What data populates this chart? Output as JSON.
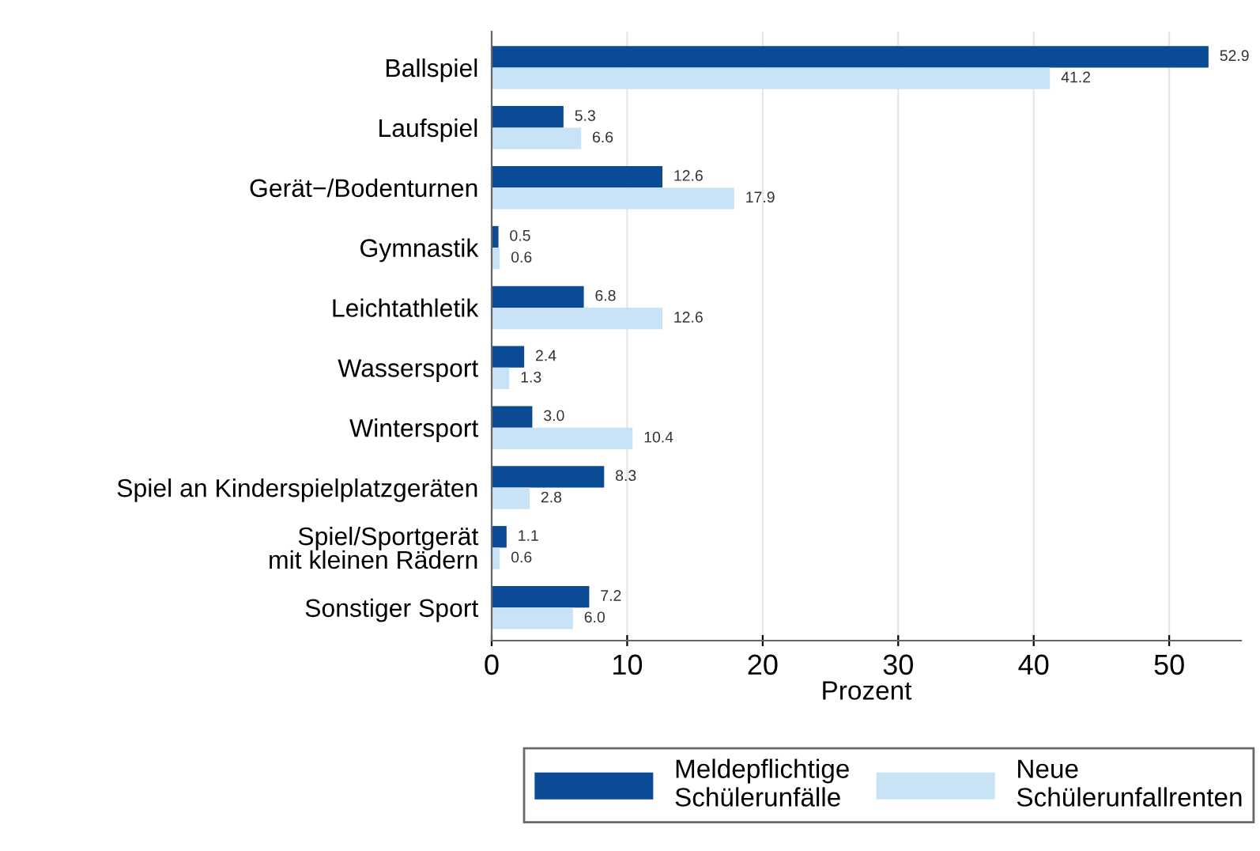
{
  "chart_data": {
    "type": "bar",
    "orientation": "horizontal",
    "xlabel": "Prozent",
    "categories": [
      "Ballspiel",
      "Laufspiel",
      "Gerät−/Bodenturnen",
      "Gymnastik",
      "Leichtathletik",
      "Wassersport",
      "Wintersport",
      "Spiel an Kinderspielplatzgeräten",
      "Spiel/Sportgerät\nmit kleinen Rädern",
      "Sonstiger Sport"
    ],
    "series": [
      {
        "name": "Meldepflichtige\nSchülerunfälle",
        "color": "#0b4a94",
        "values": [
          52.9,
          5.3,
          12.6,
          0.5,
          6.8,
          2.4,
          3.0,
          8.3,
          1.1,
          7.2
        ],
        "value_labels": [
          "52.9",
          "5.3",
          "12.6",
          "0.5",
          "6.8",
          "2.4",
          "3.0",
          "8.3",
          "1.1",
          "7.2"
        ]
      },
      {
        "name": "Neue\nSchülerunfallrenten",
        "color": "#c8e3f5",
        "values": [
          41.2,
          6.6,
          17.9,
          0.6,
          12.6,
          1.3,
          10.4,
          2.8,
          0.6,
          6.0
        ],
        "value_labels": [
          "41.2",
          "6.6",
          "17.9",
          "0.6",
          "12.6",
          "1.3",
          "10.4",
          "2.8",
          "0.6",
          "6.0"
        ]
      }
    ],
    "xlim": [
      0,
      55.3
    ],
    "xticks": [
      0,
      10,
      20,
      30,
      40,
      50
    ],
    "grid": "x",
    "legend": "bottom"
  }
}
